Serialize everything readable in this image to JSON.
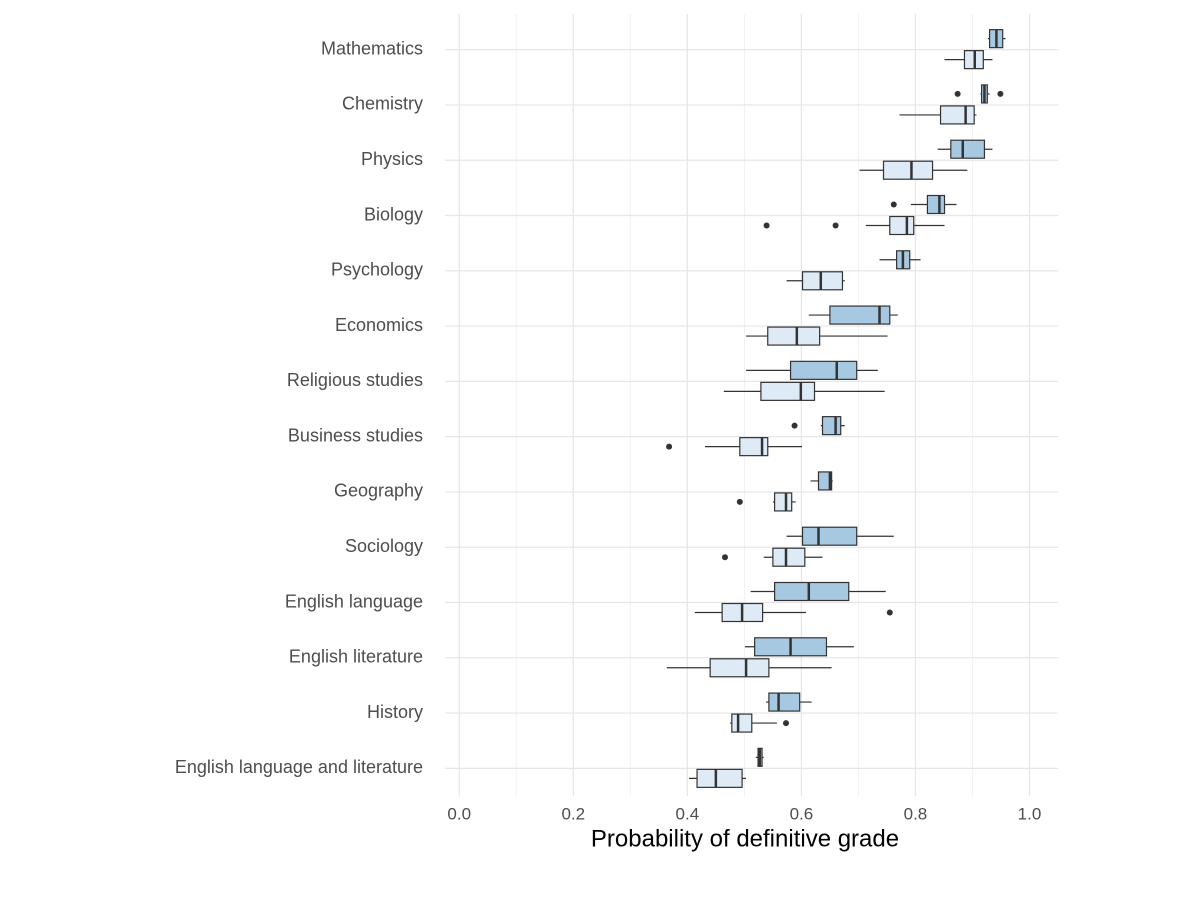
{
  "chart_data": {
    "type": "boxplot",
    "x_label": "Probability of definitive grade",
    "categories": [
      "Mathematics",
      "Chemistry",
      "Physics",
      "Biology",
      "Psychology",
      "Economics",
      "Religious studies",
      "Business studies",
      "Geography",
      "Sociology",
      "English language",
      "English literature",
      "History",
      "English language and literature"
    ],
    "xlim": [
      -0.025,
      1.05
    ],
    "xticks": [
      {
        "value": 0,
        "label": "0.0"
      },
      0.2,
      0.4,
      0.6,
      0.8,
      {
        "value": 1,
        "label": "1.0"
      }
    ],
    "xminorticks": [
      0.1,
      0.3,
      0.5,
      0.7,
      0.9
    ],
    "grid": true,
    "series": [
      {
        "color": "#a6c8e0",
        "boxes": [
          {
            "low": 0.927,
            "q1": 0.93,
            "median": 0.942,
            "q3": 0.953,
            "high": 0.958,
            "outliers": []
          },
          {
            "low": 0.914,
            "q1": 0.916,
            "median": 0.921,
            "q3": 0.926,
            "high": 0.93,
            "outliers": [
              0.874,
              0.949
            ]
          },
          {
            "low": 0.839,
            "q1": 0.862,
            "median": 0.883,
            "q3": 0.921,
            "high": 0.935,
            "outliers": []
          },
          {
            "low": 0.792,
            "q1": 0.821,
            "median": 0.842,
            "q3": 0.851,
            "high": 0.872,
            "outliers": [
              0.762
            ]
          },
          {
            "low": 0.737,
            "q1": 0.767,
            "median": 0.778,
            "q3": 0.79,
            "high": 0.809,
            "outliers": []
          },
          {
            "low": 0.613,
            "q1": 0.65,
            "median": 0.737,
            "q3": 0.755,
            "high": 0.769,
            "outliers": []
          },
          {
            "low": 0.503,
            "q1": 0.581,
            "median": 0.662,
            "q3": 0.697,
            "high": 0.734,
            "outliers": []
          },
          {
            "low": 0.634,
            "q1": 0.637,
            "median": 0.66,
            "q3": 0.669,
            "high": 0.676,
            "outliers": [
              0.588
            ]
          },
          {
            "low": 0.616,
            "q1": 0.63,
            "median": 0.65,
            "q3": 0.653,
            "high": 0.655,
            "outliers": []
          },
          {
            "low": 0.574,
            "q1": 0.602,
            "median": 0.63,
            "q3": 0.697,
            "high": 0.762,
            "outliers": []
          },
          {
            "low": 0.511,
            "q1": 0.553,
            "median": 0.613,
            "q3": 0.683,
            "high": 0.748,
            "outliers": []
          },
          {
            "low": 0.501,
            "q1": 0.518,
            "median": 0.581,
            "q3": 0.644,
            "high": 0.692,
            "outliers": []
          },
          {
            "low": 0.538,
            "q1": 0.543,
            "median": 0.56,
            "q3": 0.597,
            "high": 0.618,
            "outliers": []
          },
          {
            "low": 0.52,
            "q1": 0.524,
            "median": 0.527,
            "q3": 0.531,
            "high": 0.534,
            "outliers": []
          }
        ]
      },
      {
        "color": "#deebf7",
        "boxes": [
          {
            "low": 0.851,
            "q1": 0.886,
            "median": 0.904,
            "q3": 0.919,
            "high": 0.935,
            "outliers": []
          },
          {
            "low": 0.772,
            "q1": 0.844,
            "median": 0.888,
            "q3": 0.903,
            "high": 0.907,
            "outliers": []
          },
          {
            "low": 0.702,
            "q1": 0.744,
            "median": 0.793,
            "q3": 0.83,
            "high": 0.891,
            "outliers": []
          },
          {
            "low": 0.713,
            "q1": 0.755,
            "median": 0.785,
            "q3": 0.797,
            "high": 0.851,
            "outliers": [
              0.539,
              0.66
            ]
          },
          {
            "low": 0.574,
            "q1": 0.602,
            "median": 0.634,
            "q3": 0.672,
            "high": 0.676,
            "outliers": []
          },
          {
            "low": 0.503,
            "q1": 0.541,
            "median": 0.592,
            "q3": 0.632,
            "high": 0.751,
            "outliers": []
          },
          {
            "low": 0.464,
            "q1": 0.529,
            "median": 0.599,
            "q3": 0.623,
            "high": 0.746,
            "outliers": []
          },
          {
            "low": 0.431,
            "q1": 0.492,
            "median": 0.531,
            "q3": 0.541,
            "high": 0.601,
            "outliers": [
              0.368
            ]
          },
          {
            "low": 0.55,
            "q1": 0.553,
            "median": 0.573,
            "q3": 0.583,
            "high": 0.59,
            "outliers": [
              0.492
            ]
          },
          {
            "low": 0.534,
            "q1": 0.55,
            "median": 0.573,
            "q3": 0.606,
            "high": 0.637,
            "outliers": [
              0.466
            ]
          },
          {
            "low": 0.413,
            "q1": 0.461,
            "median": 0.496,
            "q3": 0.532,
            "high": 0.608,
            "outliers": [
              0.755
            ]
          },
          {
            "low": 0.364,
            "q1": 0.44,
            "median": 0.503,
            "q3": 0.543,
            "high": 0.653,
            "outliers": []
          },
          {
            "low": 0.475,
            "q1": 0.478,
            "median": 0.489,
            "q3": 0.513,
            "high": 0.557,
            "outliers": [
              0.573
            ]
          },
          {
            "low": 0.403,
            "q1": 0.417,
            "median": 0.45,
            "q3": 0.496,
            "high": 0.503,
            "outliers": []
          }
        ]
      }
    ]
  }
}
